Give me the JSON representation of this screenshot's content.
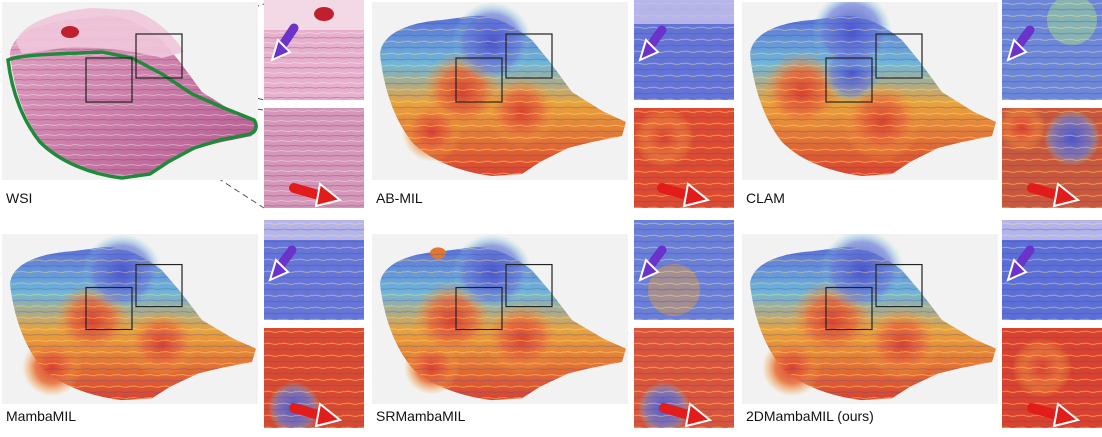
{
  "figure": {
    "panels": [
      {
        "id": "wsi",
        "label": "WSI",
        "kind": "he"
      },
      {
        "id": "abmil",
        "label": "AB-MIL",
        "kind": "heat"
      },
      {
        "id": "clam",
        "label": "CLAM",
        "kind": "heat2"
      },
      {
        "id": "mambamil",
        "label": "MambaMIL",
        "kind": "heat"
      },
      {
        "id": "srmambamil",
        "label": "SRMambaMIL",
        "kind": "heat"
      },
      {
        "id": "2dmambamil",
        "label": "2DMambaMIL (ours)",
        "kind": "heat"
      }
    ]
  },
  "colors": {
    "he_pink": "#d58fb2",
    "he_dark": "#b3578e",
    "heat_red": "#d9422e",
    "heat_orange": "#f0a338",
    "heat_blue": "#5b6fd6",
    "heat_cyan": "#7fd3e0",
    "outline_green": "#1f8a3a",
    "arrow_purple": "#6a33c9",
    "arrow_red": "#e21b1b"
  }
}
